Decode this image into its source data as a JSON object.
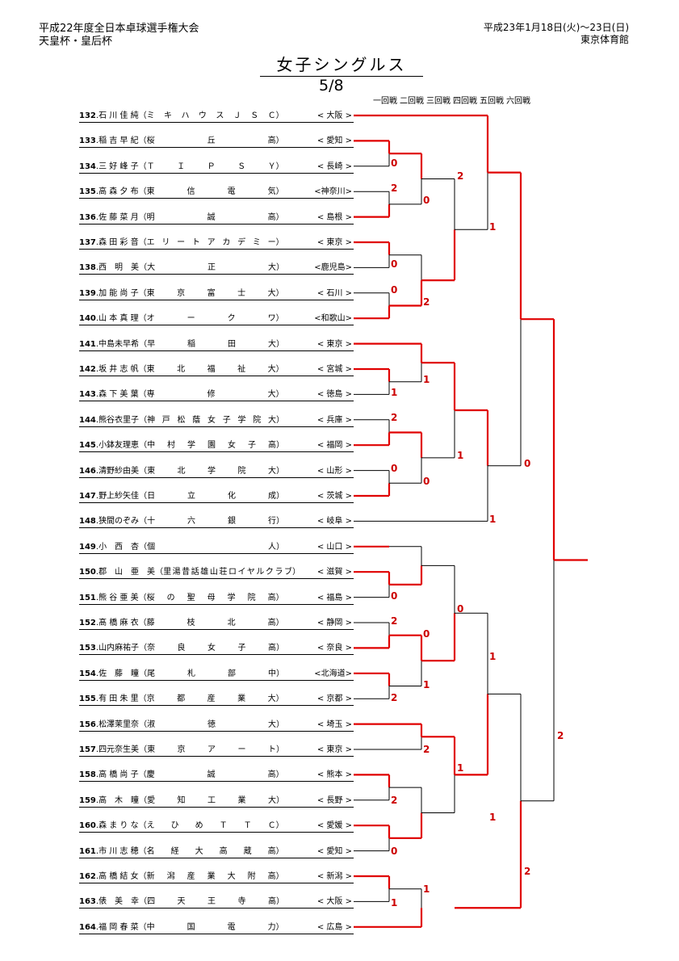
{
  "header": {
    "tournament_line1": "平成22年度全日本卓球選手権大会",
    "tournament_line2": "天皇杯・皇后杯",
    "date": "平成23年1月18日(火)～23日(日)",
    "venue": "東京体育館"
  },
  "title": "女子シングルス",
  "page": "5/8",
  "rounds": [
    "一回戦",
    "二回戦",
    "三回戦",
    "四回戦",
    "五回戦",
    "六回戦"
  ],
  "colors": {
    "winner_line": "#e00000",
    "loser_line": "#000000",
    "score": "#cc0000"
  },
  "players": [
    {
      "num": "132",
      "name": "石 川 佳 純",
      "school": "ミ キ ハ ウ ス Ｊ Ｓ Ｃ",
      "pref": "< 大阪 >"
    },
    {
      "num": "133",
      "name": "稲 吉 早 紀",
      "school": "桜　　　丘　　　高",
      "pref": "< 愛知 >"
    },
    {
      "num": "134",
      "name": "三 好 峰 子",
      "school": "Ｔ　Ｉ　Ｐ　Ｓ　Ｙ",
      "pref": "< 長崎 >"
    },
    {
      "num": "135",
      "name": "高 森 夕 布",
      "school": "東　信　電　気",
      "pref": "<神奈川>"
    },
    {
      "num": "136",
      "name": "佐 藤 菜 月",
      "school": "明　　　誠　　　高",
      "pref": "< 島根 >"
    },
    {
      "num": "137",
      "name": "森 田 彩 音",
      "school": "エリートアカデミー",
      "pref": "< 東京 >"
    },
    {
      "num": "138",
      "name": "西　明　美",
      "school": "大　　　正　　　大",
      "pref": "<鹿児島>"
    },
    {
      "num": "139",
      "name": "加 能 尚 子",
      "school": "東　京　富　士　大",
      "pref": "< 石川 >"
    },
    {
      "num": "140",
      "name": "山 本 真 理",
      "school": "オ　ー　ク　ワ",
      "pref": "<和歌山>"
    },
    {
      "num": "141",
      "name": "中島未早希",
      "school": "早　稲　田　大",
      "pref": "< 東京 >"
    },
    {
      "num": "142",
      "name": "坂 井 志 帆",
      "school": "東　北　福　祉　大",
      "pref": "< 宮城 >"
    },
    {
      "num": "143",
      "name": "森 下 美 葉",
      "school": "専　　　修　　　大",
      "pref": "< 徳島 >"
    },
    {
      "num": "144",
      "name": "熊谷衣里子",
      "school": "神 戸 松 蔭 女 子 学 院 大",
      "pref": "< 兵庫 >"
    },
    {
      "num": "145",
      "name": "小鉢友理恵",
      "school": "中 村 学 園 女 子 高",
      "pref": "< 福岡 >"
    },
    {
      "num": "146",
      "name": "清野紗由美",
      "school": "東　北　学　院　大",
      "pref": "< 山形 >"
    },
    {
      "num": "147",
      "name": "野上紗矢佳",
      "school": "日　立　化　成",
      "pref": "< 茨城 >"
    },
    {
      "num": "148",
      "name": "狭間のぞみ",
      "school": "十　六　銀　行",
      "pref": "< 岐阜 >"
    },
    {
      "num": "149",
      "name": "小　西　杏",
      "school": "個　　　　　　　　人",
      "pref": "< 山口 >"
    },
    {
      "num": "150",
      "name": "郡　山　亜　美",
      "school": "里湯昔話雄山荘ロイヤルクラブ",
      "pref": "< 滋賀 >"
    },
    {
      "num": "151",
      "name": "熊 谷 亜 美",
      "school": "桜 の 聖 母 学 院 高",
      "pref": "< 福島 >"
    },
    {
      "num": "152",
      "name": "髙 橋 麻 衣",
      "school": "藤　枝　北　高",
      "pref": "< 静岡 >"
    },
    {
      "num": "153",
      "name": "山内麻祐子",
      "school": "奈　良　女　子　高",
      "pref": "< 奈良 >"
    },
    {
      "num": "154",
      "name": "佐　藤　瞳",
      "school": "尾　札　部　中",
      "pref": "<北海道>"
    },
    {
      "num": "155",
      "name": "有 田 朱 里",
      "school": "京　都　産　業　大",
      "pref": "< 京都 >"
    },
    {
      "num": "156",
      "name": "松澤茉里奈",
      "school": "淑　　　徳　　　大",
      "pref": "< 埼玉 >"
    },
    {
      "num": "157",
      "name": "四元奈生美",
      "school": "東　京　ア　ー　ト",
      "pref": "< 東京 >"
    },
    {
      "num": "158",
      "name": "高 橋 尚 子",
      "school": "慶　　　誠　　　高",
      "pref": "< 熊本 >"
    },
    {
      "num": "159",
      "name": "高　木　瞳",
      "school": "愛　知　工　業　大",
      "pref": "< 長野 >"
    },
    {
      "num": "160",
      "name": "森 ま り な",
      "school": "え　ひ　め　Ｔ　Ｔ　Ｃ",
      "pref": "< 愛媛 >"
    },
    {
      "num": "161",
      "name": "市 川 志 穂",
      "school": "名　経　大　高　蔵　高",
      "pref": "< 愛知 >"
    },
    {
      "num": "162",
      "name": "高 橋 結 女",
      "school": "新 潟 産 業 大 附 高",
      "pref": "< 新潟 >"
    },
    {
      "num": "163",
      "name": "俵　美　幸",
      "school": "四　天　王　寺　高",
      "pref": "< 大阪 >"
    },
    {
      "num": "164",
      "name": "福 岡 春 菜",
      "school": "中　国　電　力",
      "pref": "< 広島 >"
    }
  ],
  "scores": [
    "0",
    "2",
    "0",
    "2",
    "0",
    "0",
    "2",
    "2",
    "1",
    "1",
    "1",
    "0",
    "0",
    "1",
    "0",
    "2",
    "0",
    "1",
    "1",
    "2",
    "2",
    "1",
    "0",
    "1",
    "1",
    "1",
    "0",
    "1",
    "2",
    "2"
  ]
}
